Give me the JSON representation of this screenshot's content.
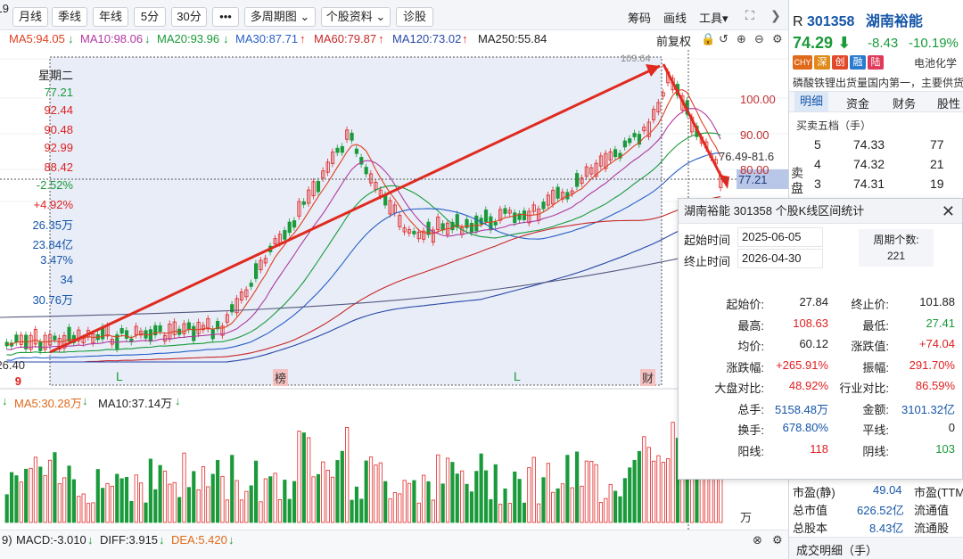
{
  "toolbar": {
    "buttons": [
      "月线",
      "季线",
      "年线",
      "5分",
      "30分"
    ],
    "more": "•••",
    "multi_period": "多周期图",
    "stock_info": "个股资料",
    "diagnose": "诊股",
    "chips": "筹码",
    "draw": "画线",
    "tools": "工具"
  },
  "ma": {
    "ma5": "MA5:94.05",
    "ma10": "MA10:98.06",
    "ma20": "MA20:93.96",
    "ma30": "MA30:87.71",
    "ma60": "MA60:79.87",
    "ma120": "MA120:73.02",
    "ma250": "MA250:55.84",
    "restore": "前复权",
    "ma5_color": "#e04020",
    "ma10_color": "#b03aa0",
    "ma20_color": "#1a9a3a",
    "ma30_color": "#2860c8",
    "ma60_color": "#c82828",
    "ma120_color": "#2848a8",
    "ma250_color": "#222222"
  },
  "left_col": {
    "first": "19",
    "weekday": "星期二",
    "values": [
      "77.21",
      "92.44",
      "90.48",
      "92.99",
      "88.42",
      "-2.52%",
      "+4.92%",
      "26.35万",
      "23.84亿",
      "3.47%",
      "34",
      "30.76万"
    ],
    "low_price": "26.40",
    "low_marker": "9"
  },
  "chart": {
    "peak_label": "109.64",
    "markers": [
      "L",
      "榜",
      "L",
      "财"
    ],
    "axis": [
      "100.00",
      "90.00",
      "80.00"
    ],
    "range_label": "76.49-81.6",
    "cursor_value": "77.21"
  },
  "volume": {
    "ma5": "MA5:30.28万",
    "ma10": "MA10:37.14万",
    "unit": "万"
  },
  "macd": {
    "macd": "MACD:-3.010",
    "diff": "DIFF:3.915",
    "dea": "DEA:5.420",
    "left": "9)"
  },
  "right_panel": {
    "code": "301358",
    "name": "湖南裕能",
    "prefix": "R",
    "price": "74.29",
    "change": "-8.43",
    "pct": "-10.19%",
    "badges": [
      "CHY",
      "深",
      "创",
      "融",
      "陆"
    ],
    "badge_colors": [
      "#e06a1a",
      "#e08a1a",
      "#e04a2a",
      "#2a7ad0",
      "#e03a5a"
    ],
    "industry": "电池化学",
    "desc": "磷酸铁锂出货量国内第一，主要供货",
    "tabs": [
      "明细",
      "资金",
      "财务",
      "股性"
    ],
    "sub": "买卖五档（手）",
    "sell_label": "卖盘",
    "orders": [
      {
        "level": "5",
        "price": "74.33",
        "vol": "77"
      },
      {
        "level": "4",
        "price": "74.32",
        "vol": "21"
      },
      {
        "level": "3",
        "price": "74.31",
        "vol": "19"
      }
    ],
    "stats": [
      {
        "k1": "市盈(静)",
        "v1": "49.04",
        "k2": "市盈(TTM"
      },
      {
        "k1": "总市值",
        "v1": "626.52亿",
        "k2": "流通值"
      },
      {
        "k1": "总股本",
        "v1": "8.43亿",
        "k2": "流通股"
      }
    ],
    "trade_detail": "成交明细（手）"
  },
  "popup": {
    "title": "湖南裕能  301358  个股K线区间统计",
    "start_label": "起始时间",
    "start": "2025-06-05",
    "end_label": "终止时间",
    "end": "2026-04-30",
    "period_label": "周期个数:",
    "period": "221",
    "rows": [
      {
        "k1": "起始价:",
        "v1": "27.84",
        "k2": "终止价:",
        "v2": "101.88",
        "c1": "#222",
        "c2": "#222"
      },
      {
        "k1": "最高:",
        "v1": "108.63",
        "k2": "最低:",
        "v2": "27.41",
        "c1": "#e02020",
        "c2": "#1a9a3a"
      },
      {
        "k1": "均价:",
        "v1": "60.12",
        "k2": "涨跌值:",
        "v2": "+74.04",
        "c1": "#222",
        "c2": "#e02020"
      },
      {
        "k1": "涨跌幅:",
        "v1": "+265.91%",
        "k2": "振幅:",
        "v2": "291.70%",
        "c1": "#e02020",
        "c2": "#e02020"
      },
      {
        "k1": "大盘对比:",
        "v1": "48.92%",
        "k2": "行业对比:",
        "v2": "86.59%",
        "c1": "#e02020",
        "c2": "#e02020"
      },
      {
        "k1": "总手:",
        "v1": "5158.48万",
        "k2": "金额:",
        "v2": "3101.32亿",
        "c1": "#1556a8",
        "c2": "#1556a8"
      },
      {
        "k1": "换手:",
        "v1": "678.80%",
        "k2": "平线:",
        "v2": "0",
        "c1": "#1556a8",
        "c2": "#222"
      },
      {
        "k1": "阳线:",
        "v1": "118",
        "k2": "阴线:",
        "v2": "103",
        "c1": "#e02020",
        "c2": "#1a9a3a"
      }
    ]
  }
}
